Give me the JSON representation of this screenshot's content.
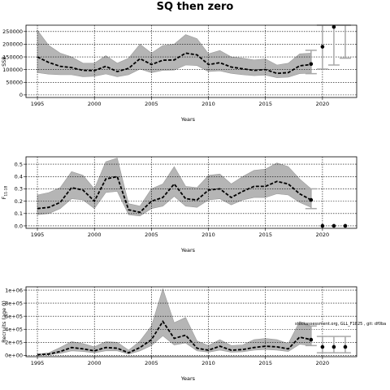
{
  "chart_data": {
    "title": "SQ then zero",
    "panels": [
      {
        "type": "line",
        "ylabel": "SSB",
        "xlabel": "Years",
        "xlim": [
          1994,
          2023
        ],
        "ylim": [
          -10000,
          275000
        ],
        "xticks": [
          1995,
          2000,
          2005,
          2010,
          2015,
          2020
        ],
        "yticks": [
          0,
          50000,
          100000,
          150000,
          200000,
          250000
        ],
        "ytick_labels": [
          "0",
          "50000",
          "100000",
          "150000",
          "200000",
          "250000"
        ],
        "grid": true,
        "x": [
          1995,
          1996,
          1997,
          1998,
          1999,
          2000,
          2001,
          2002,
          2003,
          2004,
          2005,
          2006,
          2007,
          2008,
          2009,
          2010,
          2011,
          2012,
          2013,
          2014,
          2015,
          2016,
          2017,
          2018,
          2019
        ],
        "median": [
          150000,
          128000,
          113000,
          108000,
          97000,
          96000,
          113000,
          92000,
          105000,
          143000,
          120000,
          137000,
          138000,
          165000,
          158000,
          120000,
          127000,
          110000,
          103000,
          97000,
          100000,
          85000,
          88000,
          115000,
          120000
        ],
        "lower": [
          88000,
          82000,
          80000,
          80000,
          72000,
          74000,
          83000,
          72000,
          80000,
          102000,
          88000,
          97000,
          98000,
          118000,
          116000,
          92000,
          95000,
          85000,
          80000,
          76000,
          78000,
          68000,
          70000,
          84000,
          86000
        ],
        "upper": [
          255000,
          195000,
          165000,
          150000,
          125000,
          125000,
          155000,
          125000,
          145000,
          200000,
          165000,
          195000,
          200000,
          238000,
          222000,
          162000,
          175000,
          150000,
          145000,
          138000,
          142000,
          118000,
          125000,
          162000,
          165000
        ],
        "projection": {
          "x": [
            2019,
            2020,
            2021,
            2022
          ],
          "median": [
            122000,
            190000,
            268000,
            null
          ],
          "lower": [
            84000,
            102000,
            118000,
            145000
          ],
          "upper": [
            176000,
            275000,
            275000,
            275000
          ]
        }
      },
      {
        "type": "line",
        "ylabel": "F11-18",
        "xlabel": "Years",
        "xlim": [
          1994,
          2023
        ],
        "ylim": [
          -0.02,
          0.56
        ],
        "xticks": [
          1995,
          2000,
          2005,
          2010,
          2015,
          2020
        ],
        "yticks": [
          0.0,
          0.1,
          0.2,
          0.3,
          0.4,
          0.5
        ],
        "ytick_labels": [
          "0.0",
          "0.1",
          "0.2",
          "0.3",
          "0.4",
          "0.5"
        ],
        "grid": true,
        "x": [
          1995,
          1996,
          1997,
          1998,
          1999,
          2000,
          2001,
          2002,
          2003,
          2004,
          2005,
          2006,
          2007,
          2008,
          2009,
          2010,
          2011,
          2012,
          2013,
          2014,
          2015,
          2016,
          2017,
          2018,
          2019
        ],
        "median": [
          0.14,
          0.15,
          0.19,
          0.31,
          0.29,
          0.2,
          0.38,
          0.4,
          0.13,
          0.11,
          0.2,
          0.23,
          0.34,
          0.22,
          0.21,
          0.29,
          0.3,
          0.23,
          0.28,
          0.32,
          0.32,
          0.36,
          0.34,
          0.26,
          0.21
        ],
        "lower": [
          0.09,
          0.1,
          0.14,
          0.22,
          0.21,
          0.14,
          0.27,
          0.28,
          0.09,
          0.08,
          0.14,
          0.16,
          0.24,
          0.16,
          0.15,
          0.21,
          0.22,
          0.17,
          0.21,
          0.23,
          0.23,
          0.26,
          0.25,
          0.19,
          0.15
        ],
        "upper": [
          0.25,
          0.27,
          0.31,
          0.44,
          0.41,
          0.3,
          0.52,
          0.55,
          0.18,
          0.16,
          0.3,
          0.34,
          0.48,
          0.32,
          0.31,
          0.41,
          0.42,
          0.34,
          0.4,
          0.45,
          0.46,
          0.51,
          0.48,
          0.38,
          0.3
        ],
        "projection": {
          "x": [
            2019,
            2020,
            2021,
            2022
          ],
          "median": [
            0.21,
            0.0,
            0.0,
            0.0
          ],
          "lower": [
            0.14,
            null,
            null,
            null
          ],
          "upper": [
            0.3,
            null,
            null,
            null
          ]
        }
      },
      {
        "type": "line",
        "ylabel": "Recruits (age 0)",
        "xlabel": "Years",
        "xlim": [
          1994,
          2023
        ],
        "ylim": [
          -20000,
          1050000
        ],
        "xticks": [
          1995,
          2000,
          2005,
          2010,
          2015,
          2020
        ],
        "yticks": [
          0,
          200000,
          400000,
          600000,
          800000,
          1000000
        ],
        "ytick_labels": [
          "0e+00",
          "2e+05",
          "4e+05",
          "6e+05",
          "8e+05",
          "1e+06"
        ],
        "grid": true,
        "annotation": "stockassessment.org, GLL_F1825 , git: df0ba",
        "x": [
          1995,
          1996,
          1997,
          1998,
          1999,
          2000,
          2001,
          2002,
          2003,
          2004,
          2005,
          2006,
          2007,
          2008,
          2009,
          2010,
          2011,
          2012,
          2013,
          2014,
          2015,
          2016,
          2017,
          2018,
          2019
        ],
        "median": [
          10000,
          20000,
          60000,
          120000,
          100000,
          70000,
          120000,
          110000,
          40000,
          120000,
          240000,
          520000,
          260000,
          310000,
          110000,
          80000,
          140000,
          80000,
          90000,
          120000,
          140000,
          130000,
          100000,
          280000,
          240000
        ],
        "lower": [
          5000,
          10000,
          30000,
          70000,
          60000,
          40000,
          70000,
          70000,
          20000,
          70000,
          150000,
          300000,
          160000,
          190000,
          70000,
          50000,
          80000,
          50000,
          55000,
          80000,
          90000,
          80000,
          60000,
          170000,
          150000
        ],
        "upper": [
          20000,
          40000,
          120000,
          210000,
          180000,
          130000,
          210000,
          200000,
          80000,
          220000,
          450000,
          1020000,
          500000,
          580000,
          220000,
          150000,
          240000,
          150000,
          160000,
          240000,
          260000,
          240000,
          180000,
          520000,
          450000
        ],
        "projection": {
          "x": [
            2019,
            2020,
            2021,
            2022
          ],
          "median": [
            240000,
            130000,
            130000,
            130000
          ],
          "lower": [
            150000,
            40000,
            40000,
            40000
          ],
          "upper": [
            450000,
            290000,
            290000,
            290000
          ]
        }
      }
    ]
  }
}
